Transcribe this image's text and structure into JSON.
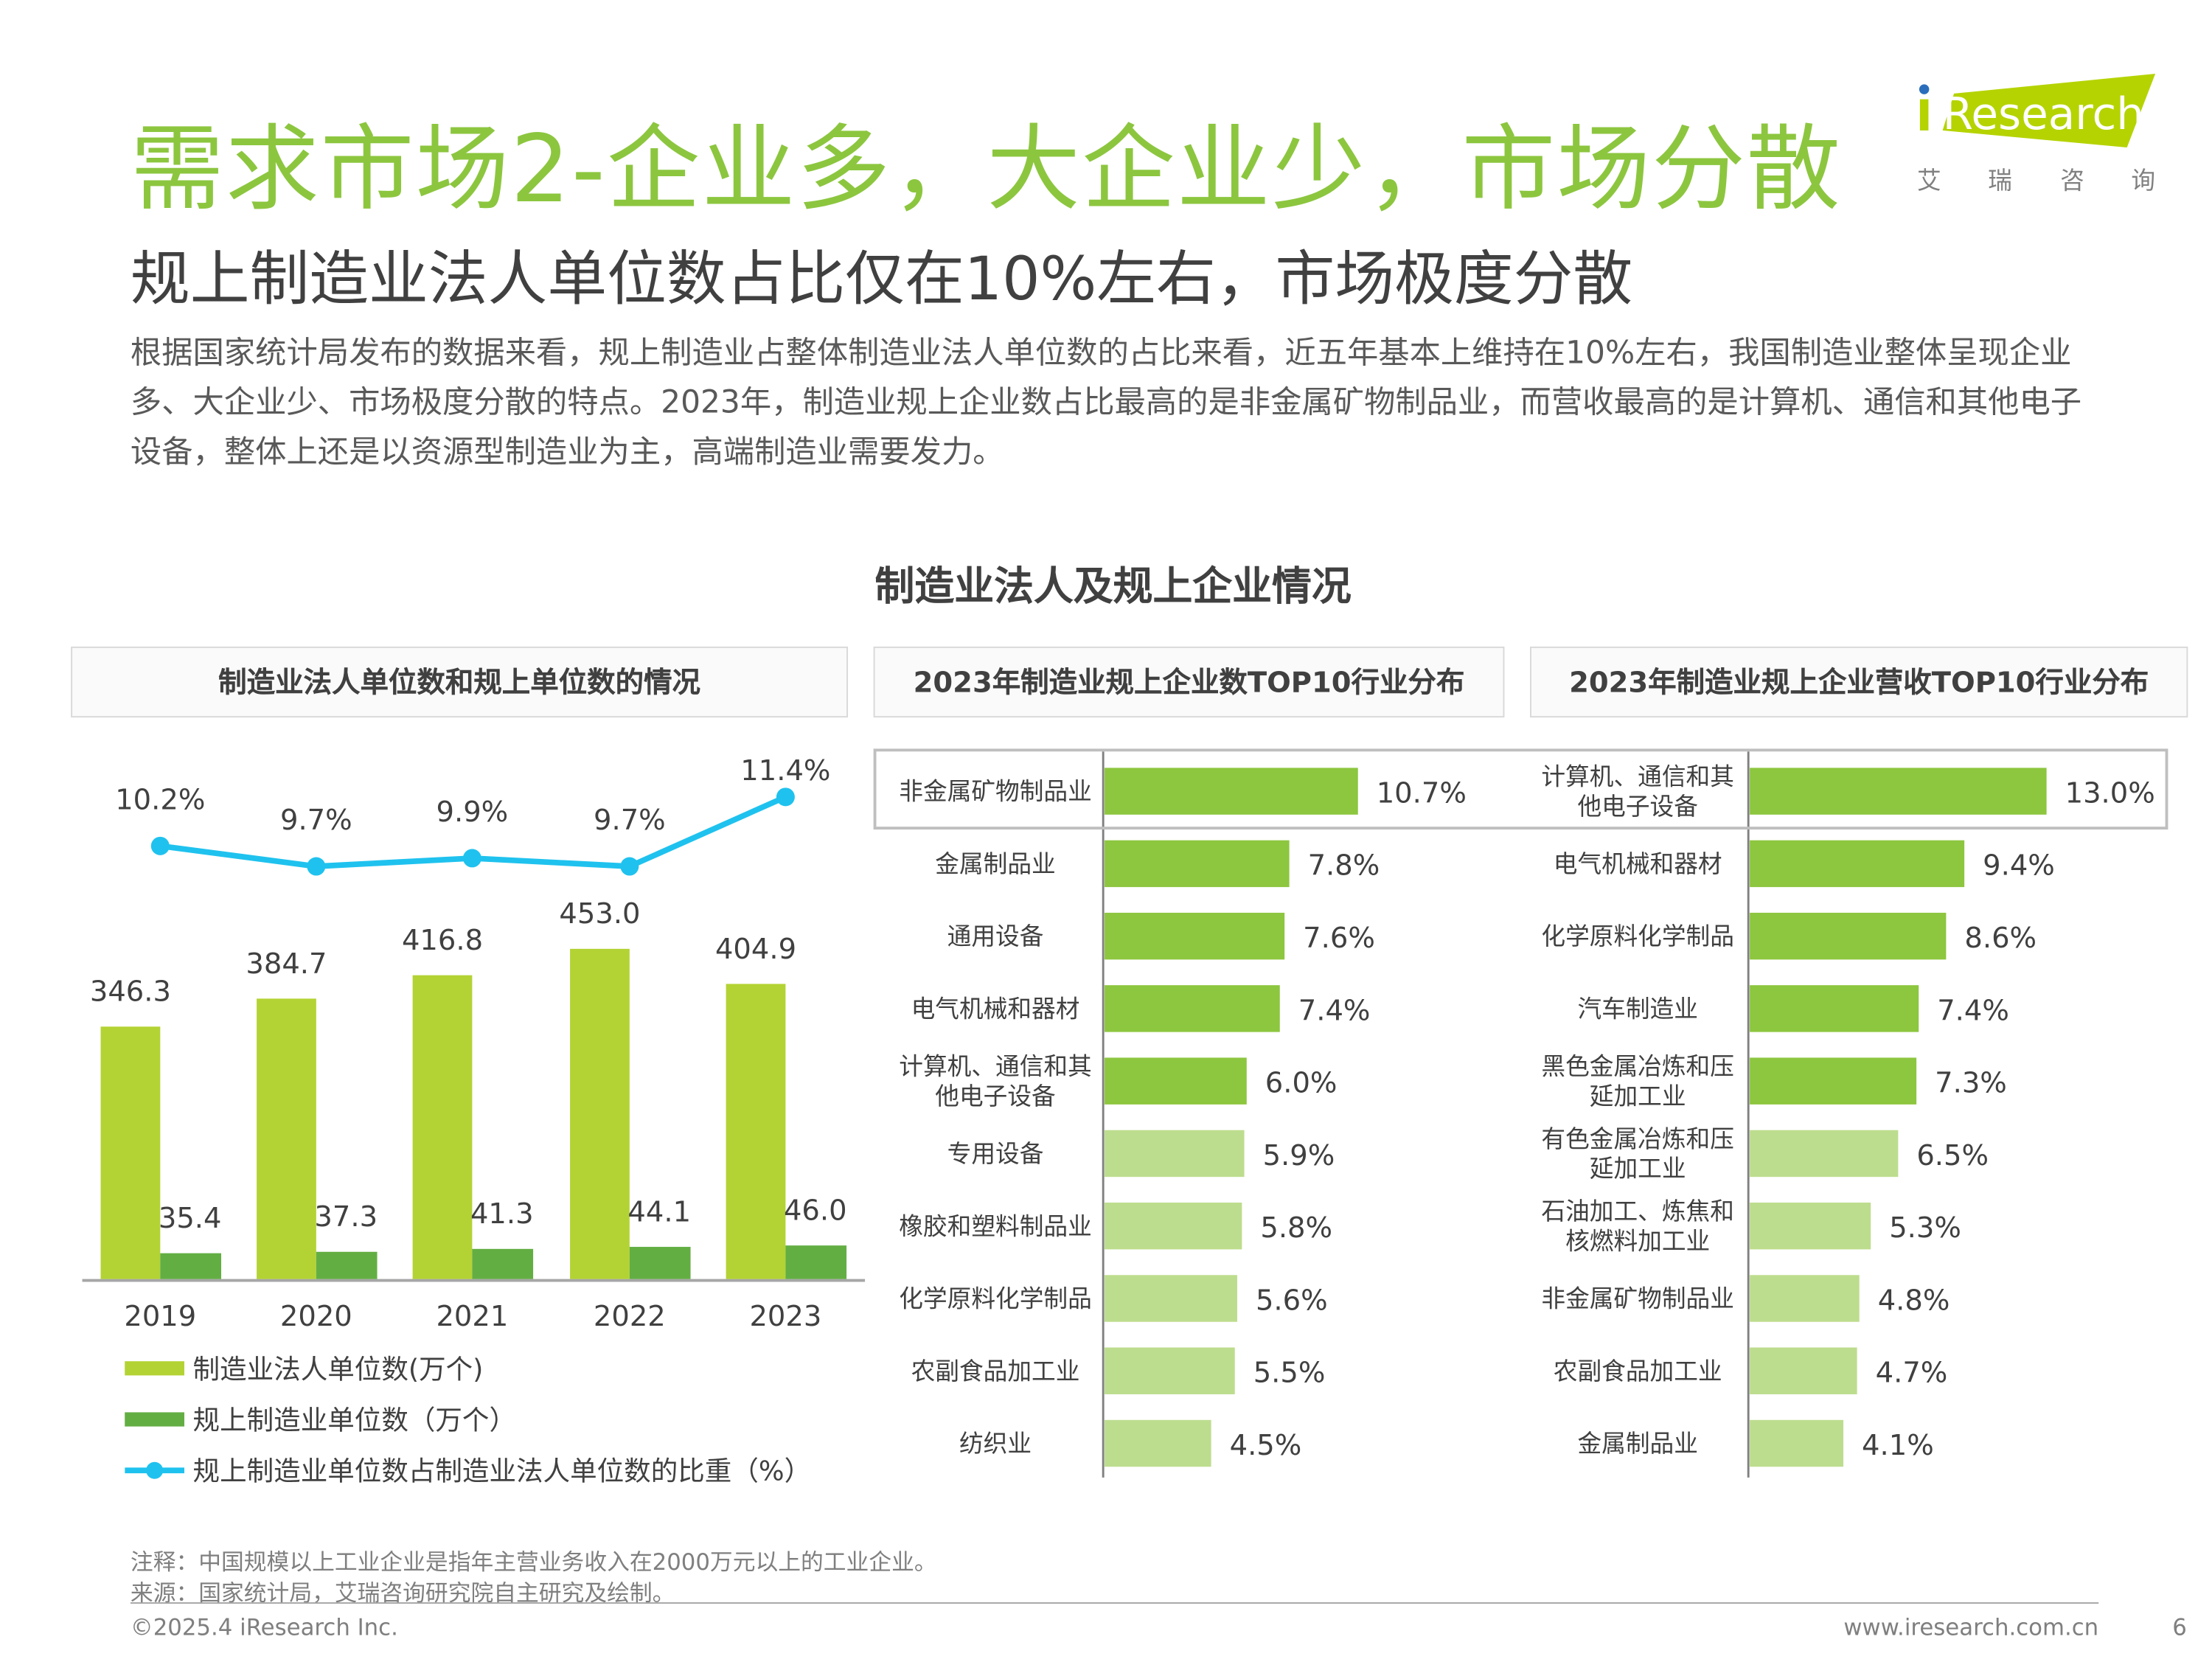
{
  "header": {
    "title": "需求市场2-企业多，大企业少，市场分散",
    "subtitle": "规上制造业法人单位数占比仅在10%左右，市场极度分散",
    "paragraph": "根据国家统计局发布的数据来看，规上制造业占整体制造业法人单位数的占比来看，近五年基本上维持在10%左右，我国制造业整体呈现企业多、大企业少、市场极度分散的特点。2023年，制造业规上企业数占比最高的是非金属矿物制品业，而营收最高的是计算机、通信和其他电子设备，整体上还是以资源型制造业为主，高端制造业需要发力。"
  },
  "logo": {
    "brand": "iResearch",
    "cn": [
      "艾",
      "瑞",
      "咨",
      "询"
    ],
    "color": "#b5d300",
    "dot_color": "#2a6ebb"
  },
  "chart_section_title": "制造业法人及规上企业情况",
  "colors": {
    "light_green": "#b3d334",
    "dark_green": "#63ae43",
    "line_blue": "#1fc2ee",
    "top_bar": "#8dc63f",
    "other_bar": "#bddd8e",
    "title_green": "#8cc63f"
  },
  "chart_data": [
    {
      "type": "bar+line",
      "title": "制造业法人单位数和规上单位数的情况",
      "categories": [
        "2019",
        "2020",
        "2021",
        "2022",
        "2023"
      ],
      "series": [
        {
          "name": "制造业法人单位数(万个)",
          "type": "bar",
          "values": [
            346.3,
            384.7,
            416.8,
            453.0,
            404.9
          ],
          "labels": [
            "346.3",
            "384.7",
            "416.8",
            "453.0",
            "404.9"
          ]
        },
        {
          "name": "规上制造业单位数（万个）",
          "type": "bar",
          "values": [
            35.4,
            37.3,
            41.3,
            44.1,
            46.0
          ],
          "labels": [
            "35.4",
            "37.3",
            "41.3",
            "44.1",
            "46.0"
          ]
        },
        {
          "name": "规上制造业单位数占制造业法人单位数的比重（%）",
          "type": "line",
          "values": [
            10.2,
            9.7,
            9.9,
            9.7,
            11.4
          ],
          "labels": [
            "10.2%",
            "9.7%",
            "9.9%",
            "9.7%",
            "11.4%"
          ]
        }
      ],
      "legend": "bottom-left"
    },
    {
      "type": "bar-horizontal",
      "title": "2023年制造业规上企业数TOP10行业分布",
      "categories": [
        "非金属矿物制品业",
        "金属制品业",
        "通用设备",
        "电气机械和器材",
        "计算机、通信和其他电子设备",
        "专用设备",
        "橡胶和塑料制品业",
        "化学原料化学制品",
        "农副食品加工业",
        "纺织业"
      ],
      "category_lines": [
        [
          "非金属矿物制品业"
        ],
        [
          "金属制品业"
        ],
        [
          "通用设备"
        ],
        [
          "电气机械和器材"
        ],
        [
          "计算机、通信和其",
          "他电子设备"
        ],
        [
          "专用设备"
        ],
        [
          "橡胶和塑料制品业"
        ],
        [
          "化学原料化学制品"
        ],
        [
          "农副食品加工业"
        ],
        [
          "纺织业"
        ]
      ],
      "values": [
        10.7,
        7.8,
        7.6,
        7.4,
        6.0,
        5.9,
        5.8,
        5.6,
        5.5,
        4.5
      ],
      "labels": [
        "10.7%",
        "7.8%",
        "7.6%",
        "7.4%",
        "6.0%",
        "5.9%",
        "5.8%",
        "5.6%",
        "5.5%",
        "4.5%"
      ],
      "highlight_top": 5
    },
    {
      "type": "bar-horizontal",
      "title": "2023年制造业规上企业营收TOP10行业分布",
      "categories": [
        "计算机、通信和其他电子设备",
        "电气机械和器材",
        "化学原料化学制品",
        "汽车制造业",
        "黑色金属冶炼和压延加工业",
        "有色金属冶炼和压延加工业",
        "石油加工、炼焦和核燃料加工业",
        "非金属矿物制品业",
        "农副食品加工业",
        "金属制品业"
      ],
      "category_lines": [
        [
          "计算机、通信和其",
          "他电子设备"
        ],
        [
          "电气机械和器材"
        ],
        [
          "化学原料化学制品"
        ],
        [
          "汽车制造业"
        ],
        [
          "黑色金属冶炼和压",
          "延加工业"
        ],
        [
          "有色金属冶炼和压",
          "延加工业"
        ],
        [
          "石油加工、炼焦和",
          "核燃料加工业"
        ],
        [
          "非金属矿物制品业"
        ],
        [
          "农副食品加工业"
        ],
        [
          "金属制品业"
        ]
      ],
      "values": [
        13.0,
        9.4,
        8.6,
        7.4,
        7.3,
        6.5,
        5.3,
        4.8,
        4.7,
        4.1
      ],
      "labels": [
        "13.0%",
        "9.4%",
        "8.6%",
        "7.4%",
        "7.3%",
        "6.5%",
        "5.3%",
        "4.8%",
        "4.7%",
        "4.1%"
      ],
      "highlight_top": 5
    }
  ],
  "notes": {
    "note": "注释：中国规模以上工业企业是指年主营业务收入在2000万元以上的工业企业。",
    "source": "来源：国家统计局，艾瑞咨询研究院自主研究及绘制。"
  },
  "footer": {
    "copyright": "©2025.4 iResearch Inc.",
    "website": "www.iresearch.com.cn",
    "page": "6"
  }
}
